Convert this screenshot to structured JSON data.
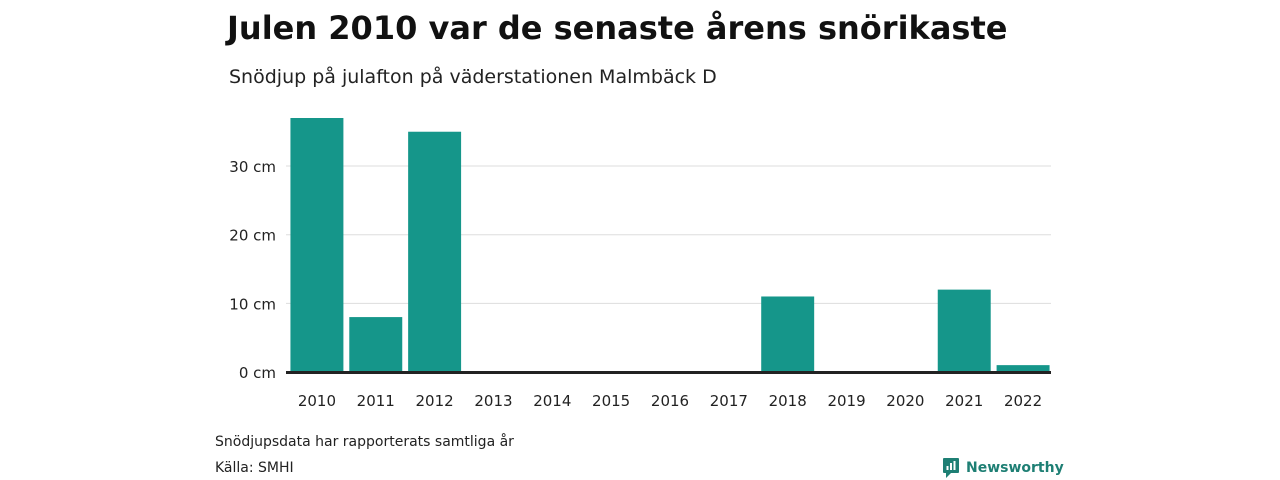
{
  "header": {
    "title": "Julen 2010 var de senaste årens snörikaste",
    "subtitle": "Snödjup på julafton på väderstationen Malmbäck D"
  },
  "footer": {
    "note": "Snödjupsdata har rapporterats samtliga år",
    "source": "Källa: SMHI",
    "brand": "Newsworthy"
  },
  "colors": {
    "bar": "#15968a",
    "grid": "#dddddd",
    "baseline": "#222222",
    "brand": "#1e7f74"
  },
  "chart_data": {
    "type": "bar",
    "categories": [
      "2010",
      "2011",
      "2012",
      "2013",
      "2014",
      "2015",
      "2016",
      "2017",
      "2018",
      "2019",
      "2020",
      "2021",
      "2022"
    ],
    "values": [
      37,
      8,
      35,
      0,
      0,
      0,
      0,
      0,
      11,
      0,
      0,
      12,
      1
    ],
    "yticks": [
      0,
      10,
      20,
      30
    ],
    "ytick_labels": [
      "0 cm",
      "10 cm",
      "20 cm",
      "30 cm"
    ],
    "ylim": [
      0,
      37
    ],
    "grid": true
  }
}
